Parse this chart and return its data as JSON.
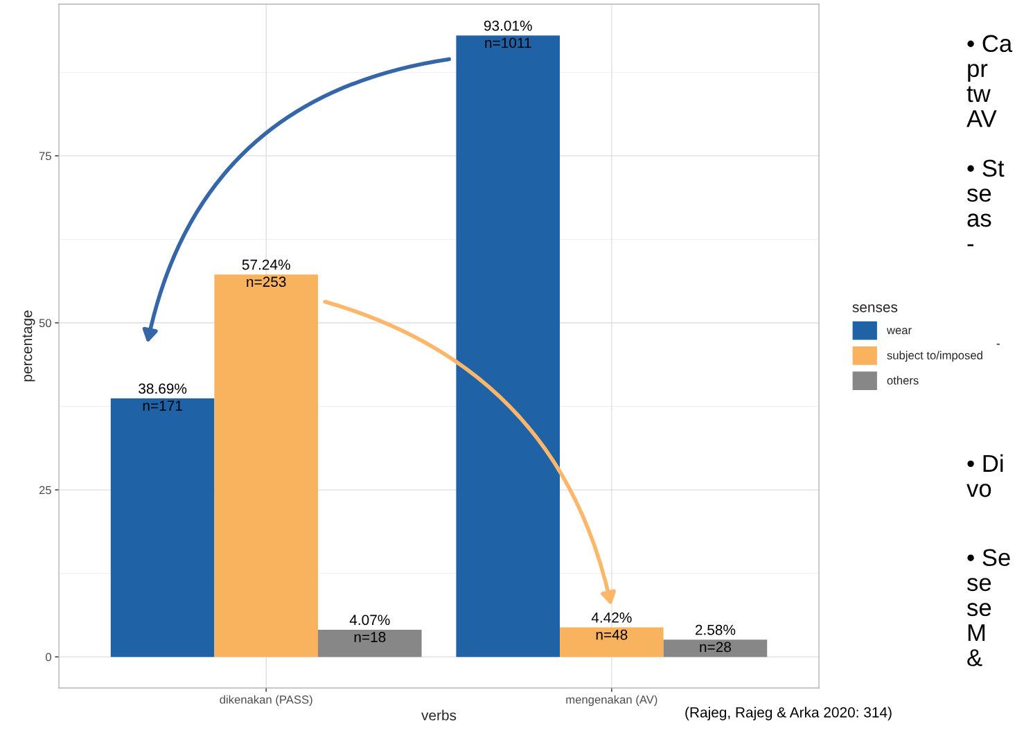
{
  "chart_data": {
    "type": "bar",
    "xlabel": "verbs",
    "ylabel": "percentage",
    "legend_title": "senses",
    "categories": [
      "dikenakan (PASS)",
      "mengenakan (AV)"
    ],
    "series": [
      {
        "name": "wear",
        "color": "#1f62a5",
        "values": [
          38.69,
          93.01
        ],
        "value_labels": [
          "38.69%\nn=171",
          "93.01%\nn=1011"
        ]
      },
      {
        "name": "subject to/imposed",
        "color": "#f9b25e",
        "values": [
          57.24,
          4.42
        ],
        "value_labels": [
          "57.24%\nn=253",
          "4.42%\nn=48"
        ]
      },
      {
        "name": "others",
        "color": "#878787",
        "values": [
          4.07,
          2.58
        ],
        "value_labels": [
          "4.07%\nn=18",
          "2.58%\nn=28"
        ]
      }
    ],
    "ylim": [
      -4.65,
      97.7
    ],
    "yticks": [
      0,
      25,
      50,
      75
    ],
    "grid": true,
    "legend": "right",
    "annotations": [
      "(Rajeg, Rajeg & Arka 2020: 314)",
      "• Ca\npr\ntw\nAV",
      "• St\nse\nas\n-",
      "-",
      "• Di\nvo",
      "• Se\nse\nse\nM\n&"
    ]
  }
}
